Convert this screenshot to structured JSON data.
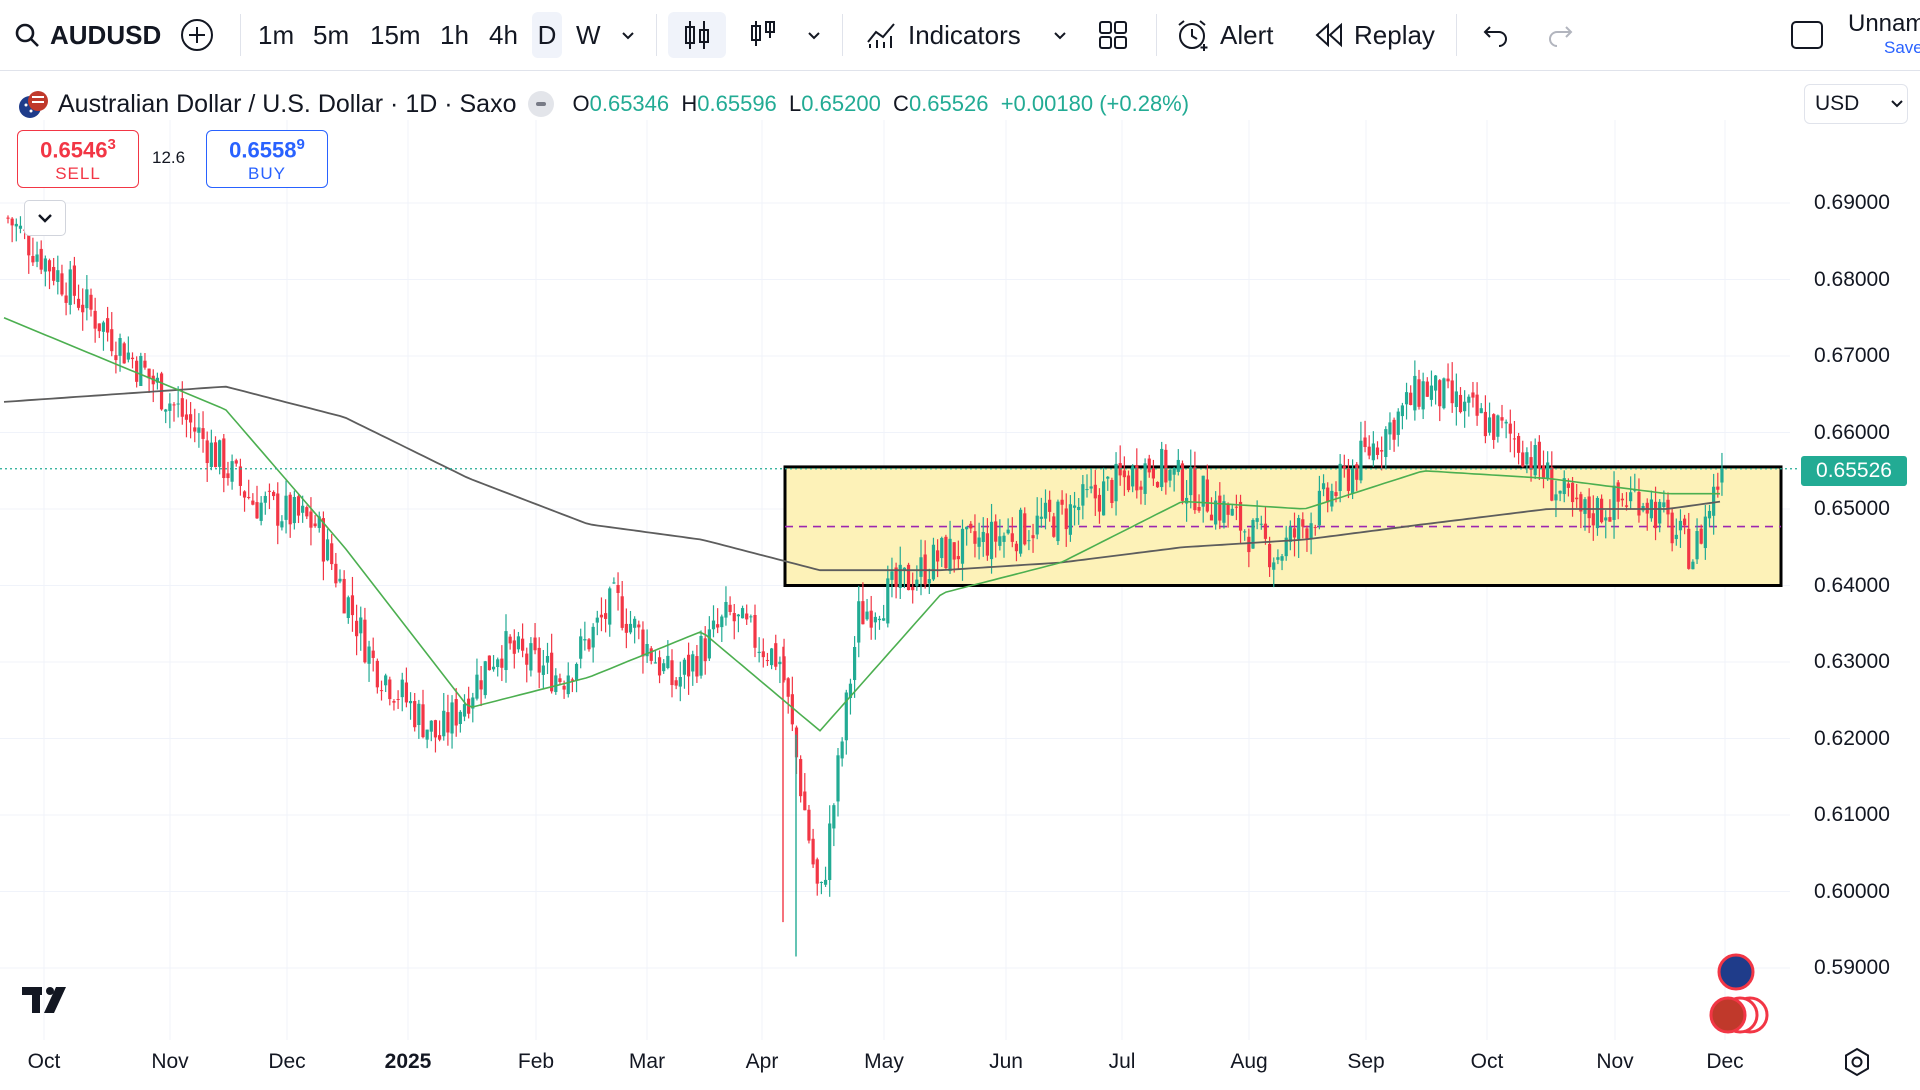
{
  "toolbar": {
    "symbol": "AUDUSD",
    "intervals": [
      "1m",
      "5m",
      "15m",
      "1h",
      "4h",
      "D",
      "W"
    ],
    "active_interval": "D",
    "indicators_label": "Indicators",
    "alert_label": "Alert",
    "replay_label": "Replay",
    "layout_name": "Unnam",
    "layout_status": "Save"
  },
  "legend": {
    "title": "Australian Dollar / U.S. Dollar · 1D · Saxo",
    "o_key": "O",
    "o_val": "0.65346",
    "h_key": "H",
    "h_val": "0.65596",
    "l_key": "L",
    "l_val": "0.65200",
    "c_key": "C",
    "c_val": "0.65526",
    "change": "+0.00180 (+0.28%)"
  },
  "trade": {
    "sell_price_main": "0.6546",
    "sell_price_sup": "3",
    "sell_label": "SELL",
    "spread": "12.6",
    "buy_price_main": "0.6558",
    "buy_price_sup": "9",
    "buy_label": "BUY"
  },
  "currency": "USD",
  "price_axis": [
    "0.69000",
    "0.68000",
    "0.67000",
    "0.66000",
    "0.65000",
    "0.64000",
    "0.63000",
    "0.62000",
    "0.61000",
    "0.60000",
    "0.59000"
  ],
  "last_price": "0.65526",
  "time_axis": [
    "Oct",
    "Nov",
    "Dec",
    "2025",
    "Feb",
    "Mar",
    "Apr",
    "May",
    "Jun",
    "Jul",
    "Aug",
    "Sep",
    "Oct",
    "Nov",
    "Dec"
  ],
  "colors": {
    "up": "#22ab94",
    "down": "#f23645",
    "ma_fast": "#4caf50",
    "ma_slow": "#5d5d5d",
    "zone_fill": "#fdf2b8",
    "zone_mid": "#9c27b0"
  },
  "chart_data": {
    "type": "candlestick",
    "symbol": "AUDUSD",
    "interval": "1D",
    "x_range": [
      "Oct 2024",
      "Dec 2025"
    ],
    "ylim": [
      0.585,
      0.695
    ],
    "close_path": [
      {
        "t": "Oct 2024",
        "v": 0.688
      },
      {
        "t": "Nov 2024",
        "v": 0.66
      },
      {
        "t": "Nov 2024",
        "v": 0.651
      },
      {
        "t": "Dec 2024",
        "v": 0.648
      },
      {
        "t": "Dec 2024",
        "v": 0.63
      },
      {
        "t": "Jan 2025",
        "v": 0.62
      },
      {
        "t": "Jan 2025",
        "v": 0.632
      },
      {
        "t": "Feb 2025",
        "v": 0.628
      },
      {
        "t": "Feb 2025",
        "v": 0.638
      },
      {
        "t": "Mar 2025",
        "v": 0.627
      },
      {
        "t": "Mar 2025",
        "v": 0.636
      },
      {
        "t": "Apr 2025",
        "v": 0.63
      },
      {
        "t": "Apr 2025",
        "v": 0.598
      },
      {
        "t": "Apr 2025",
        "v": 0.636
      },
      {
        "t": "May 2025",
        "v": 0.644
      },
      {
        "t": "Jun 2025",
        "v": 0.649
      },
      {
        "t": "Jul 2025",
        "v": 0.656
      },
      {
        "t": "Jul 2025",
        "v": 0.651
      },
      {
        "t": "Aug 2025",
        "v": 0.644
      },
      {
        "t": "Aug 2025",
        "v": 0.652
      },
      {
        "t": "Sep 2025",
        "v": 0.666
      },
      {
        "t": "Oct 2025",
        "v": 0.659
      },
      {
        "t": "Oct 2025",
        "v": 0.649
      },
      {
        "t": "Nov 2025",
        "v": 0.652
      },
      {
        "t": "Nov 2025",
        "v": 0.644
      },
      {
        "t": "Dec 2025",
        "v": 0.65526
      }
    ],
    "ma_fast": [
      {
        "t": "Oct 2024",
        "v": 0.675
      },
      {
        "t": "Nov 2024",
        "v": 0.663
      },
      {
        "t": "Dec 2024",
        "v": 0.645
      },
      {
        "t": "Jan 2025",
        "v": 0.624
      },
      {
        "t": "Feb 2025",
        "v": 0.628
      },
      {
        "t": "Mar 2025",
        "v": 0.634
      },
      {
        "t": "Apr 2025",
        "v": 0.621
      },
      {
        "t": "May 2025",
        "v": 0.639
      },
      {
        "t": "Jun 2025",
        "v": 0.643
      },
      {
        "t": "Jul 2025",
        "v": 0.651
      },
      {
        "t": "Aug 2025",
        "v": 0.65
      },
      {
        "t": "Sep 2025",
        "v": 0.655
      },
      {
        "t": "Oct 2025",
        "v": 0.654
      },
      {
        "t": "Nov 2025",
        "v": 0.652
      },
      {
        "t": "Dec 2025",
        "v": 0.652
      }
    ],
    "ma_slow": [
      {
        "t": "Oct 2024",
        "v": 0.664
      },
      {
        "t": "Nov 2024",
        "v": 0.666
      },
      {
        "t": "Dec 2024",
        "v": 0.662
      },
      {
        "t": "Jan 2025",
        "v": 0.654
      },
      {
        "t": "Feb 2025",
        "v": 0.648
      },
      {
        "t": "Mar 2025",
        "v": 0.646
      },
      {
        "t": "Apr 2025",
        "v": 0.642
      },
      {
        "t": "May 2025",
        "v": 0.642
      },
      {
        "t": "Jun 2025",
        "v": 0.643
      },
      {
        "t": "Jul 2025",
        "v": 0.645
      },
      {
        "t": "Aug 2025",
        "v": 0.646
      },
      {
        "t": "Sep 2025",
        "v": 0.648
      },
      {
        "t": "Oct 2025",
        "v": 0.65
      },
      {
        "t": "Nov 2025",
        "v": 0.65
      },
      {
        "t": "Dec 2025",
        "v": 0.651
      }
    ],
    "zone": {
      "top": 0.6555,
      "bottom": 0.64,
      "mid": 0.6477,
      "from": "Apr 2025",
      "to": "Dec 2025"
    },
    "last_price": 0.65526,
    "grid": true,
    "legend": "top-left"
  }
}
